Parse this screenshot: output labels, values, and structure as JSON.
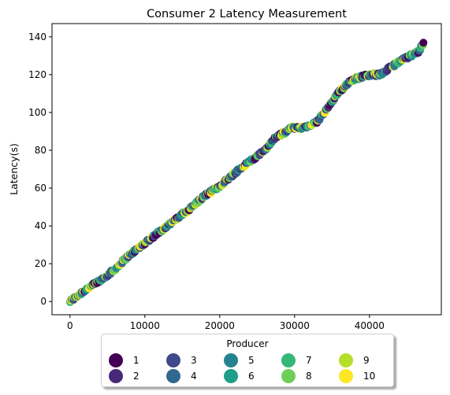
{
  "chart_data": {
    "type": "scatter",
    "title": "Consumer 2 Latency Measurement",
    "xlabel": "",
    "ylabel": "Latency(s)",
    "xlim": [
      -2400,
      49600
    ],
    "ylim": [
      -7,
      147
    ],
    "xticks": [
      0,
      10000,
      20000,
      30000,
      40000
    ],
    "xtick_labels": [
      "0",
      "10000",
      "20000",
      "30000",
      "40000"
    ],
    "yticks": [
      0,
      20,
      40,
      60,
      80,
      100,
      120,
      140
    ],
    "ytick_labels": [
      "0",
      "20",
      "40",
      "60",
      "80",
      "100",
      "120",
      "140"
    ],
    "grid": false,
    "legend": {
      "title": "Producer",
      "placement": "below-center",
      "columns": 5
    },
    "series": [
      {
        "name": "1",
        "color": "#440154"
      },
      {
        "name": "2",
        "color": "#482878"
      },
      {
        "name": "3",
        "color": "#3e4a89"
      },
      {
        "name": "4",
        "color": "#31688e"
      },
      {
        "name": "5",
        "color": "#26828e"
      },
      {
        "name": "6",
        "color": "#1f9e89"
      },
      {
        "name": "7",
        "color": "#35b779"
      },
      {
        "name": "8",
        "color": "#6ece58"
      },
      {
        "name": "9",
        "color": "#b5de2b"
      },
      {
        "name": "10",
        "color": "#fde725"
      }
    ],
    "trend": [
      [
        0,
        0
      ],
      [
        2000,
        6
      ],
      [
        4000,
        11
      ],
      [
        6000,
        17
      ],
      [
        7500,
        23
      ],
      [
        10000,
        31
      ],
      [
        12000,
        37
      ],
      [
        14000,
        43
      ],
      [
        16000,
        49
      ],
      [
        18000,
        56
      ],
      [
        20000,
        61
      ],
      [
        22000,
        68
      ],
      [
        24000,
        74
      ],
      [
        26000,
        80
      ],
      [
        27500,
        87
      ],
      [
        29000,
        90
      ],
      [
        29500,
        92
      ],
      [
        31500,
        92
      ],
      [
        33000,
        95
      ],
      [
        34000,
        100
      ],
      [
        36000,
        111
      ],
      [
        37500,
        117
      ],
      [
        39000,
        119
      ],
      [
        40000,
        120
      ],
      [
        41500,
        120
      ],
      [
        42500,
        123
      ],
      [
        44000,
        127
      ],
      [
        45500,
        130
      ],
      [
        46500,
        132
      ],
      [
        47300,
        137
      ]
    ]
  }
}
